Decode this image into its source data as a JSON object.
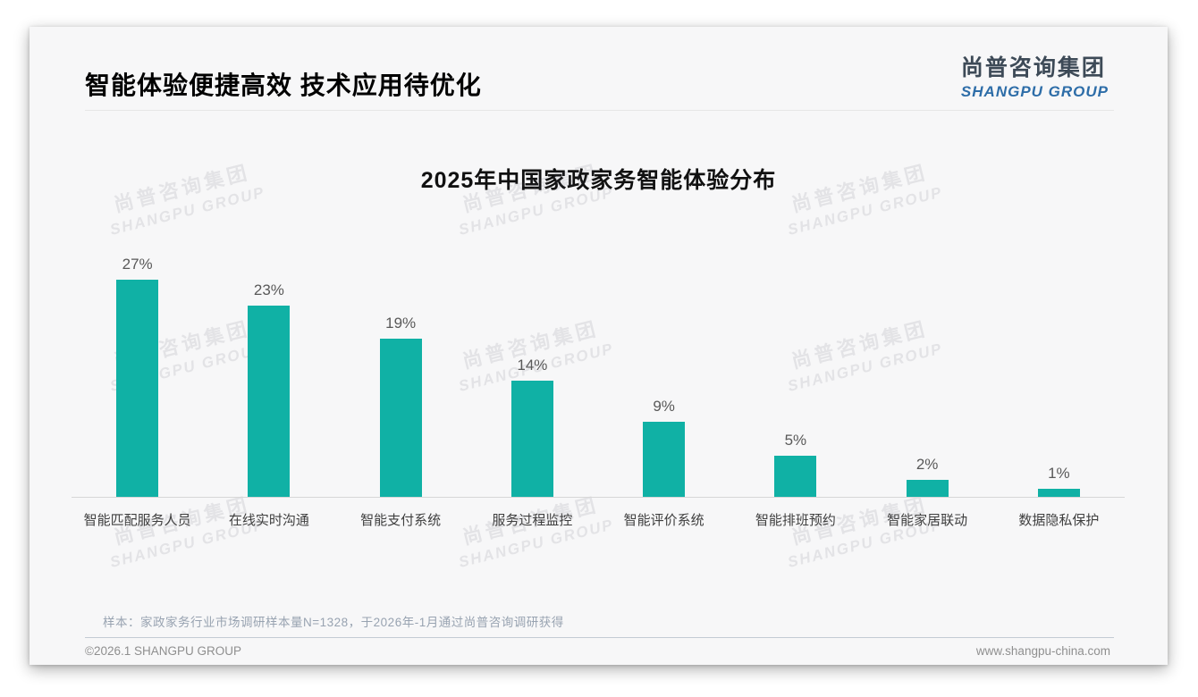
{
  "slide": {
    "header_title": "智能体验便捷高效 技术应用待优化",
    "logo": {
      "cn": "尚普咨询集团",
      "en": "SHANGPU GROUP"
    },
    "watermark": {
      "cn": "尚普咨询集团",
      "en": "SHANGPU GROUP"
    },
    "footnote": "样本：家政家务行业市场调研样本量N=1328，于2026年-1月通过尚普咨询调研获得",
    "footer_left": "©2026.1 SHANGPU GROUP",
    "footer_right": "www.shangpu-china.com"
  },
  "colors": {
    "bar_teal": "#10b1a5",
    "logo_blue": "#2d6da8",
    "logo_dark": "#3d4a57",
    "value_label": "#595959",
    "footnote_gray_blue": "#98a3b1"
  },
  "chart_data": {
    "type": "bar",
    "title": "2025年中国家政家务智能体验分布",
    "categories": [
      "智能匹配服务人员",
      "在线实时沟通",
      "智能支付系统",
      "服务过程监控",
      "智能评价系统",
      "智能排班预约",
      "智能家居联动",
      "数据隐私保护"
    ],
    "values": [
      27,
      23,
      19,
      14,
      9,
      5,
      2,
      1
    ],
    "unit": "%",
    "data_labels": true,
    "bar_color": "#10b1a5",
    "xlabel": "",
    "ylabel": "",
    "ylim": [
      0,
      29
    ],
    "grid": false,
    "legend": false
  }
}
